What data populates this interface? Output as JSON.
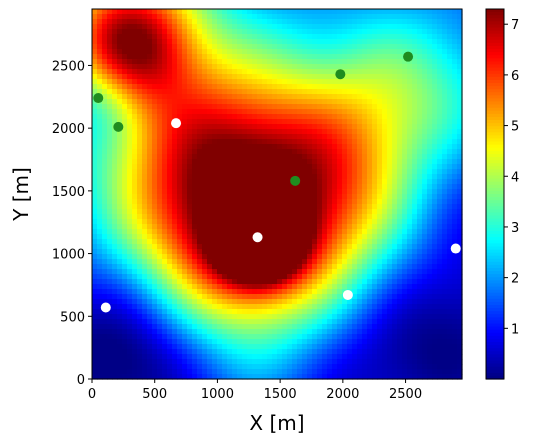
{
  "chart_data": {
    "type": "heatmap",
    "title": "",
    "xlabel": "X [m]",
    "ylabel": "Y [m]",
    "xlim": [
      0,
      2950
    ],
    "ylim": [
      0,
      2950
    ],
    "xticks": [
      0,
      500,
      1000,
      1500,
      2000,
      2500
    ],
    "yticks": [
      0,
      500,
      1000,
      1500,
      2000,
      2500
    ],
    "colormap": "jet",
    "colorbar": {
      "min": 0,
      "max": 7.3,
      "ticks": [
        1,
        2,
        3,
        4,
        5,
        6,
        7
      ]
    },
    "field_features": [
      {
        "x": 1330,
        "y": 1120,
        "value": 7.1,
        "spread_m": 200
      },
      {
        "x": 1150,
        "y": 1150,
        "value": 3.9,
        "spread_m": 650
      },
      {
        "x": 1500,
        "y": 1400,
        "value": 2.7,
        "spread_m": 800
      },
      {
        "x": 300,
        "y": 2850,
        "value": 3.3,
        "spread_m": 450
      },
      {
        "x": 250,
        "y": 2600,
        "value": 2.3,
        "spread_m": 350
      },
      {
        "x": 2150,
        "y": 1700,
        "value": 1.6,
        "spread_m": 600
      },
      {
        "x": 2600,
        "y": 2300,
        "value": 1.5,
        "spread_m": 500
      },
      {
        "x": 800,
        "y": 2000,
        "value": 2.0,
        "spread_m": 600
      },
      {
        "x": 200,
        "y": 400,
        "value": -1.3,
        "spread_m": 500
      },
      {
        "x": 500,
        "y": 150,
        "value": -1.0,
        "spread_m": 450
      },
      {
        "x": 2700,
        "y": 500,
        "value": -1.4,
        "spread_m": 600
      },
      {
        "x": 2800,
        "y": 1600,
        "value": -1.0,
        "spread_m": 450
      },
      {
        "x": 2000,
        "y": 200,
        "value": -0.8,
        "spread_m": 500
      },
      {
        "x": 100,
        "y": 2250,
        "value": -1.2,
        "spread_m": 250
      }
    ],
    "series": [
      {
        "color": "#ffffff",
        "points": [
          {
            "x": 670,
            "y": 2040
          },
          {
            "x": 1320,
            "y": 1130
          },
          {
            "x": 2040,
            "y": 670
          },
          {
            "x": 2900,
            "y": 1040
          },
          {
            "x": 110,
            "y": 570
          }
        ]
      },
      {
        "color": "#1f8c1f",
        "points": [
          {
            "x": 50,
            "y": 2240
          },
          {
            "x": 210,
            "y": 2010
          },
          {
            "x": 1980,
            "y": 2430
          },
          {
            "x": 2520,
            "y": 2570
          },
          {
            "x": 1620,
            "y": 1580
          }
        ]
      }
    ]
  }
}
